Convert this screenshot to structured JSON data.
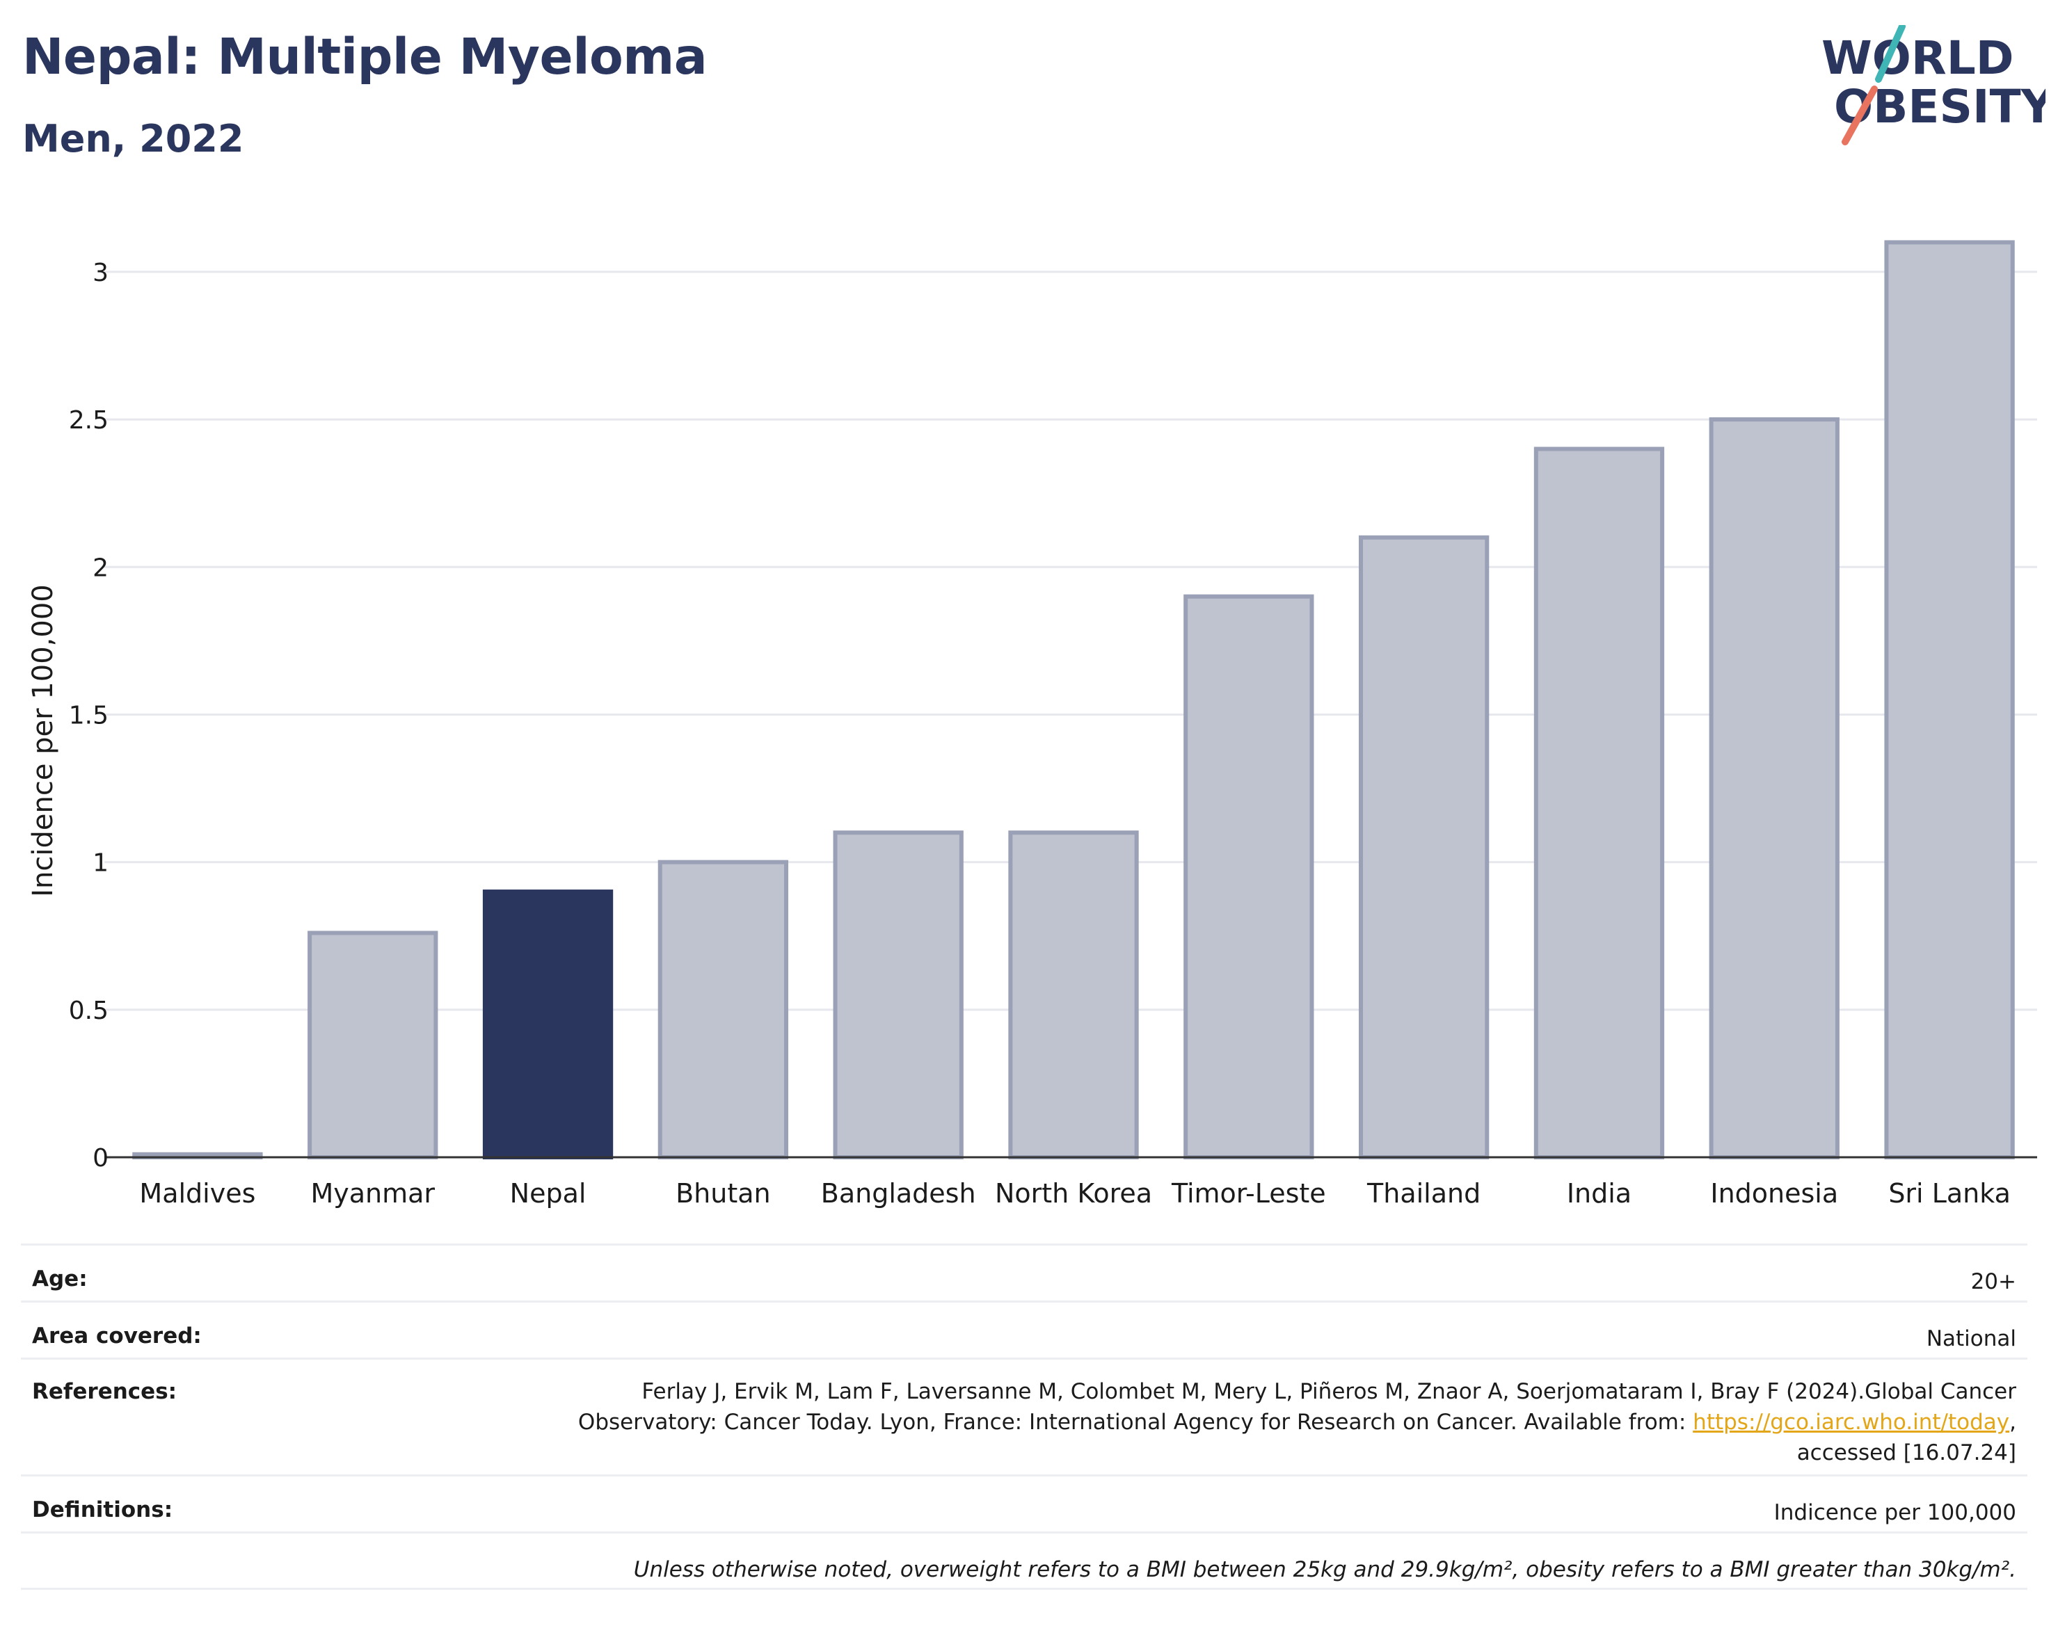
{
  "header": {
    "title": "Nepal: Multiple Myeloma",
    "subtitle": "Men, 2022"
  },
  "logo": {
    "line1": "WORLD",
    "line2": "OBESITY"
  },
  "colors": {
    "highlight": "#2b365e",
    "bar": "#bfc3d0",
    "bar_stroke": "#9aa0b6",
    "accent_teal": "#3fb5b5",
    "accent_coral": "#e8735f"
  },
  "chart_data": {
    "type": "bar",
    "categories": [
      "Maldives",
      "Myanmar",
      "Nepal",
      "Bhutan",
      "Bangladesh",
      "North Korea",
      "Timor-Leste",
      "Thailand",
      "India",
      "Indonesia",
      "Sri Lanka"
    ],
    "values": [
      0.01,
      0.76,
      0.9,
      1.0,
      1.1,
      1.1,
      1.9,
      2.1,
      2.4,
      2.5,
      3.1
    ],
    "highlight": "Nepal",
    "ylabel": "Incidence per 100,000",
    "xlabel": "",
    "ylim": [
      0,
      3.2
    ],
    "yticks": [
      0,
      0.5,
      1,
      1.5,
      2,
      2.5,
      3
    ],
    "ytick_labels": [
      "0",
      "0.5",
      "1",
      "1.5",
      "2",
      "2.5",
      "3"
    ],
    "grid": true
  },
  "info": {
    "age_label": "Age:",
    "age_value": "20+",
    "area_label": "Area covered:",
    "area_value": "National",
    "references_label": "References:",
    "references_line1": "Ferlay J, Ervik M, Lam F, Laversanne M, Colombet M, Mery L, Piñeros M, Znaor A, Soerjomataram I, Bray F (2024).Global Cancer",
    "references_line2_pre": "Observatory: Cancer Today. Lyon, France: International Agency for Research on Cancer. Available from: ",
    "references_link": "https://gco.iarc.who.int/today",
    "references_line2_post": ",",
    "references_line3": "accessed [16.07.24]",
    "definitions_label": "Definitions:",
    "definitions_value": "Indicence per 100,000",
    "footnote": "Unless otherwise noted, overweight refers to a BMI between 25kg and 29.9kg/m², obesity refers to a BMI greater than 30kg/m²."
  }
}
